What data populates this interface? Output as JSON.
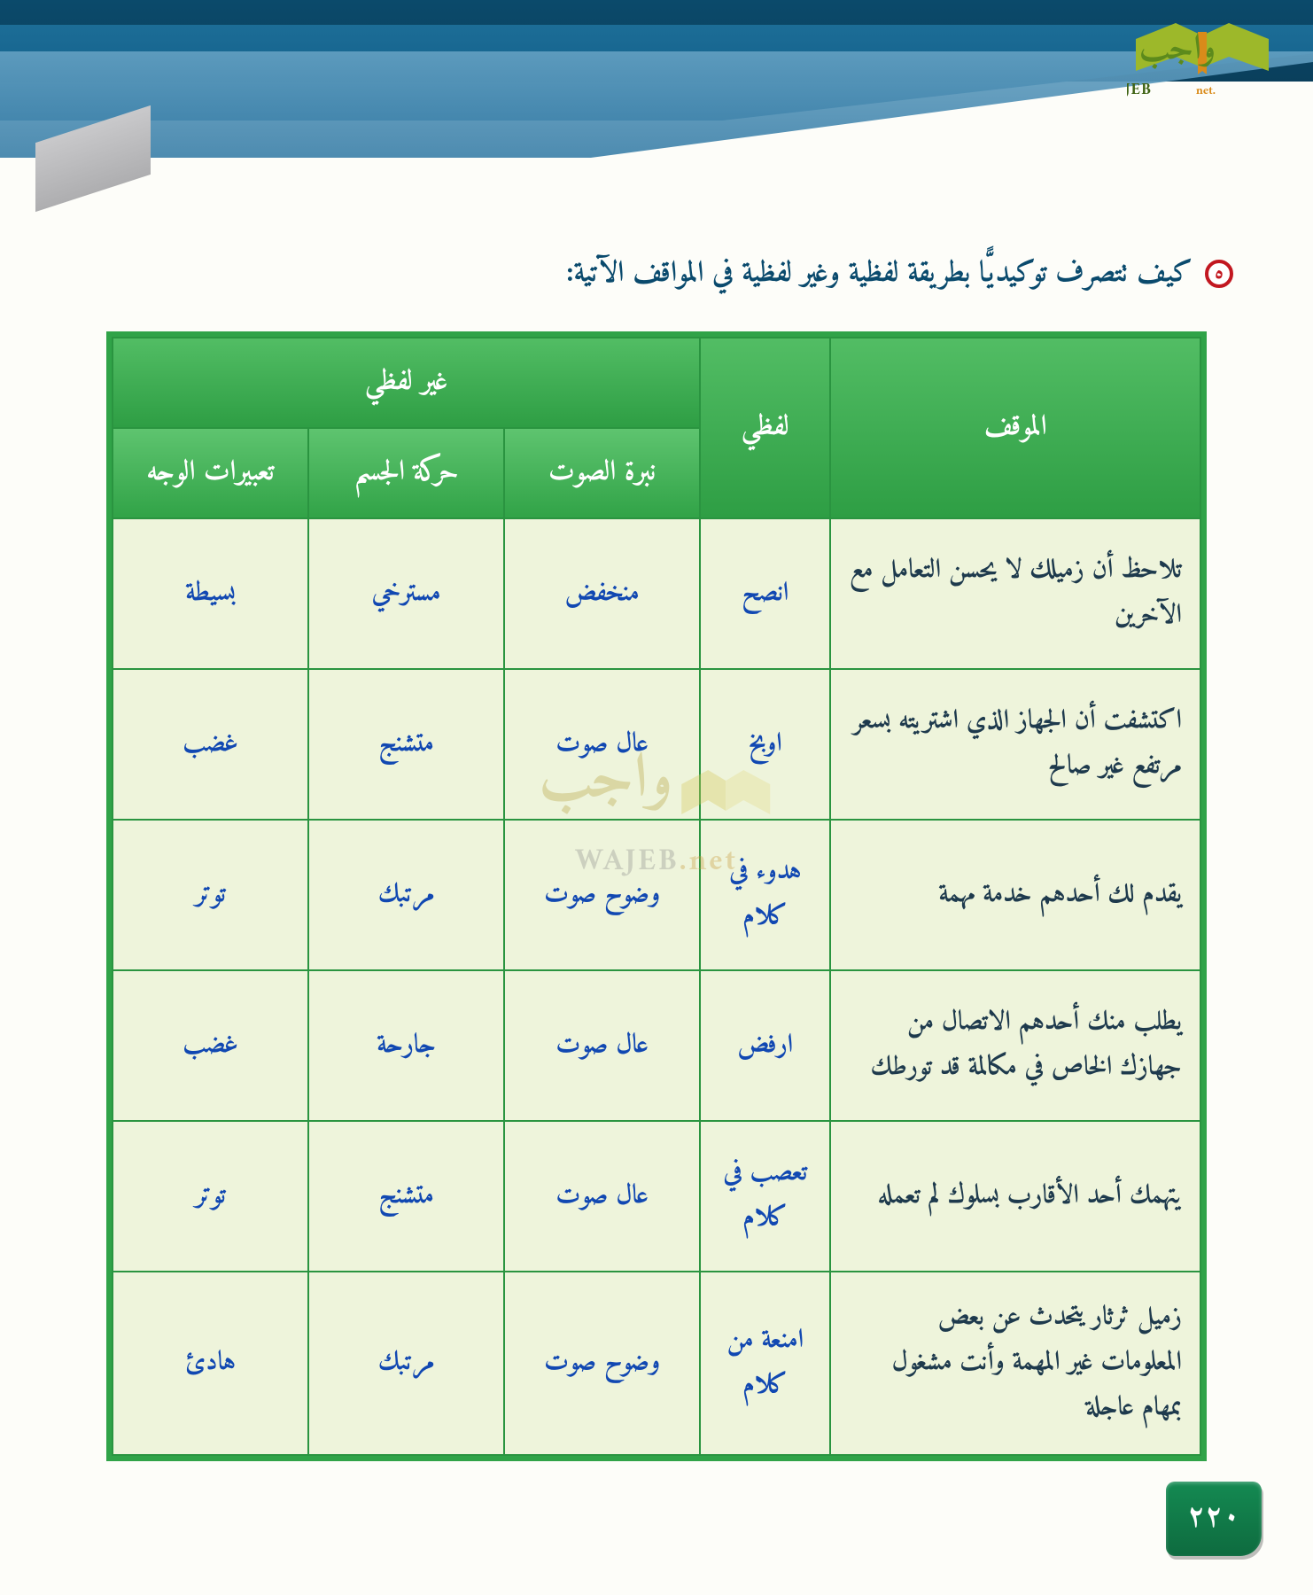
{
  "logo": {
    "ar": "واجب",
    "en": "WAJEB",
    "net": ".net"
  },
  "question": {
    "bullet": "٥",
    "text": "كيف تتصرف توكيديًّا بطريقة لفظية وغير لفظية في المواقف الآتية:"
  },
  "table": {
    "headers": {
      "situation": "الموقف",
      "nonverbal_group": "غير لفظي",
      "verbal": "لفظي",
      "tone": "نبرة الصوت",
      "body": "حركة الجسم",
      "face": "تعبيرات الوجه"
    },
    "rows": [
      {
        "situation": "تلاحظ أن زميلك لا يحسن التعامل مع الآخرين",
        "verbal": "انصح",
        "tone": "منخفض",
        "body": "مسترخي",
        "face": "بسيطة"
      },
      {
        "situation": "اكتشفت أن الجهاز الذي اشتريته بسعر مرتفع غير صالح",
        "verbal": "اوبخ",
        "tone": "عال صوت",
        "body": "متشنج",
        "face": "غضب"
      },
      {
        "situation": "يقدم لك أحدهم خدمة مهمة",
        "verbal": "هدوء في كلام",
        "tone": "وضوح صوت",
        "body": "مرتبك",
        "face": "توتر"
      },
      {
        "situation": "يطلب منك أحدهم الاتصال من جهازك الخاص في مكالمة قد تورطك",
        "verbal": "ارفض",
        "tone": "عال صوت",
        "body": "جارحة",
        "face": "غضب"
      },
      {
        "situation": "يتهمك أحد الأقارب بسلوك لم تعمله",
        "verbal": "تعصب في كلام",
        "tone": "عال صوت",
        "body": "متشنج",
        "face": "توتر"
      },
      {
        "situation": "زميل ثرثار يتحدث عن بعض المعلومات غير المهمة وأنت مشغول بمهام عاجلة",
        "verbal": "امنعة من كلام",
        "tone": "وضوح صوت",
        "body": "مرتبك",
        "face": "هادئ"
      }
    ]
  },
  "watermark": {
    "ar": "واجب",
    "en": "WAJEB",
    "net": ".net"
  },
  "page_number": "٢٢٠",
  "colors": {
    "header_green_top": "#5ec46f",
    "header_green_bottom": "#31a347",
    "border_green": "#2a9440",
    "row_bg": "#eef4db",
    "answer_blue": "#1148b2",
    "situation_text": "#1e3a4d",
    "banner_dark": "#0a3f5c",
    "banner_mid": "#0e5a86",
    "banner_light": "#3a7fa8",
    "bullet_red": "#c21720",
    "page_num_bg": "#148a52"
  }
}
